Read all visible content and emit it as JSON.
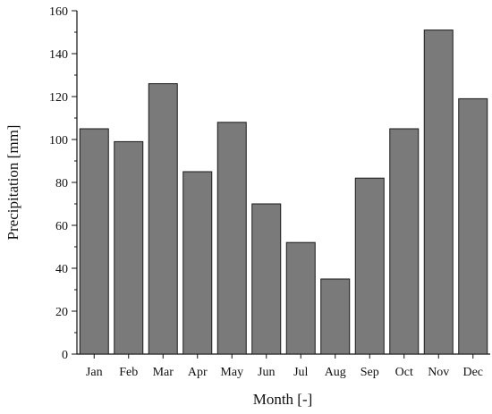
{
  "chart_data": {
    "type": "bar",
    "categories": [
      "Jan",
      "Feb",
      "Mar",
      "Apr",
      "May",
      "Jun",
      "Jul",
      "Aug",
      "Sep",
      "Oct",
      "Nov",
      "Dec"
    ],
    "values": [
      105,
      99,
      126,
      85,
      108,
      70,
      52,
      35,
      82,
      105,
      151,
      119
    ],
    "xlabel": "Month [-]",
    "ylabel": "Precipitation [mm]",
    "ylim": [
      0,
      160
    ],
    "yticks": [
      0,
      20,
      40,
      60,
      80,
      100,
      120,
      140,
      160
    ],
    "grid": false,
    "legend": "none",
    "colors": {
      "bar_fill": "#7a7a7a",
      "bar_stroke": "#1a1a1a",
      "axis": "#111111"
    }
  }
}
